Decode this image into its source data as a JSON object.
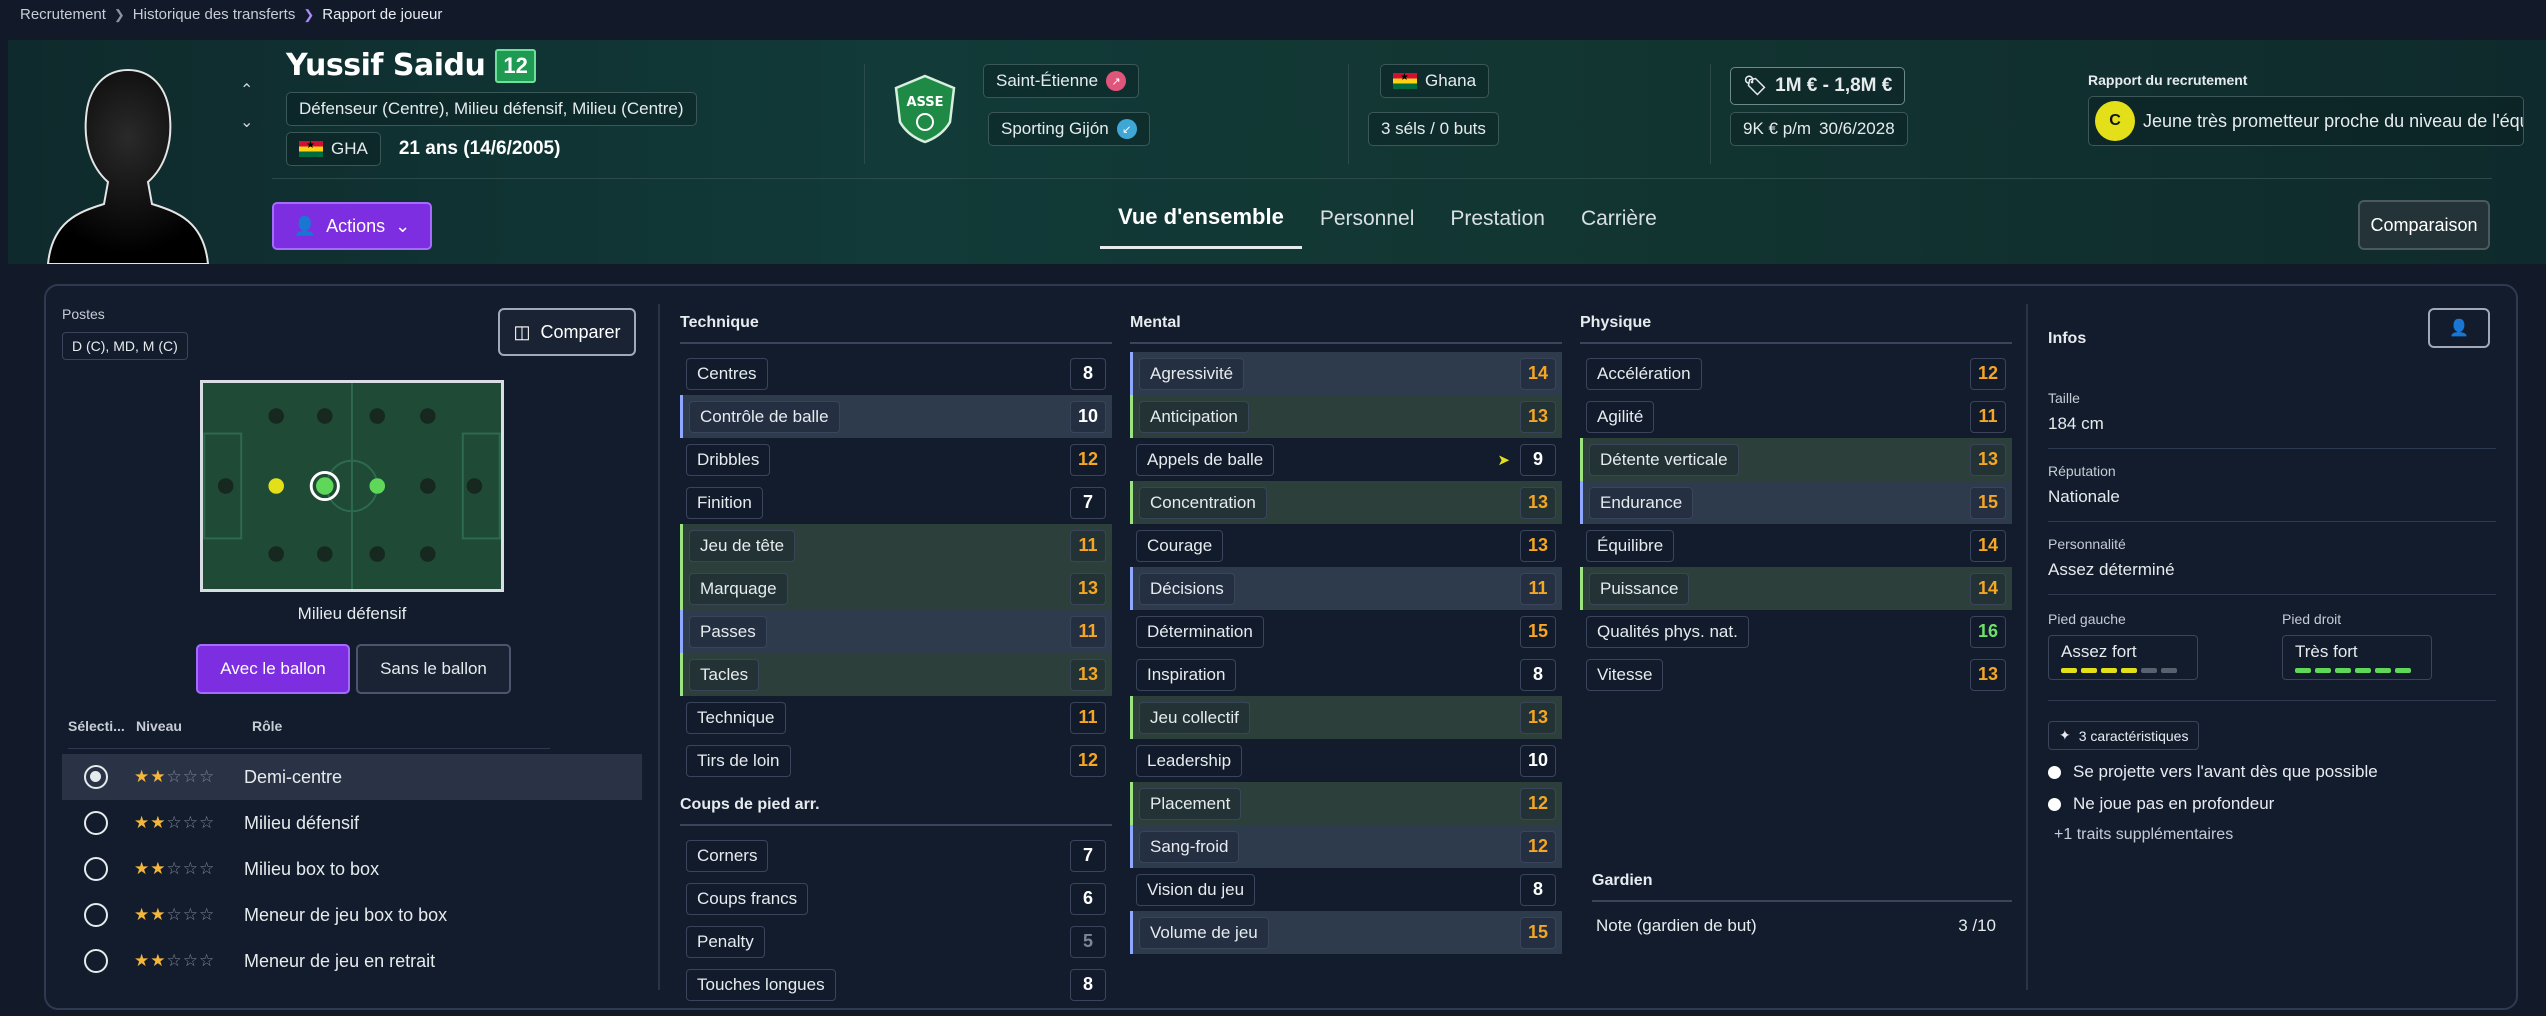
{
  "breadcrumb": [
    "Recrutement",
    "Historique des transferts",
    "Rapport de joueur"
  ],
  "player": {
    "name": "Yussif Saidu",
    "number": "12",
    "positions": "Défenseur (Centre), Milieu défensif, Milieu (Centre)",
    "nationality_code": "GHA",
    "age": "21 ans (14/6/2005)"
  },
  "header": {
    "actions_label": "Actions",
    "club_current": "Saint-Étienne",
    "club_loan": "Sporting Gijón",
    "country": "Ghana",
    "caps": "3 séls / 0 buts",
    "value": "1M € - 1,8M €",
    "wage": "9K € p/m",
    "contract_end": "30/6/2028",
    "report_title": "Rapport du recrutement",
    "report_grade": "C",
    "report_text": "Jeune très prometteur proche du niveau de l'équip...",
    "tabs": [
      "Vue d'ensemble",
      "Personnel",
      "Prestation",
      "Carrière"
    ],
    "compare_label": "Comparaison"
  },
  "left": {
    "postes_label": "Postes",
    "postes_value": "D (C), MD, M (C)",
    "compare_btn": "Comparer",
    "pitch_position": "Milieu défensif",
    "with_ball": "Avec le ballon",
    "without_ball": "Sans le ballon",
    "role_headers": [
      "Sélecti...",
      "Niveau",
      "Rôle"
    ],
    "roles": [
      {
        "name": "Demi-centre",
        "stars": 2,
        "selected": true
      },
      {
        "name": "Milieu défensif",
        "stars": 2,
        "selected": false
      },
      {
        "name": "Milieu box to box",
        "stars": 2,
        "selected": false
      },
      {
        "name": "Meneur de jeu box to box",
        "stars": 2,
        "selected": false
      },
      {
        "name": "Meneur de jeu en retrait",
        "stars": 2,
        "selected": false
      }
    ]
  },
  "attributes": {
    "technique": {
      "title": "Technique",
      "items": [
        {
          "name": "Centres",
          "value": "8",
          "color": "white",
          "hl": "",
          "ind": ""
        },
        {
          "name": "Contrôle de balle",
          "value": "10",
          "color": "white",
          "hl": "hl",
          "ind": "ib"
        },
        {
          "name": "Dribbles",
          "value": "12",
          "color": "orange",
          "hl": "",
          "ind": ""
        },
        {
          "name": "Finition",
          "value": "7",
          "color": "white",
          "hl": "",
          "ind": ""
        },
        {
          "name": "Jeu de tête",
          "value": "11",
          "color": "orange",
          "hl": "hg",
          "ind": "ig"
        },
        {
          "name": "Marquage",
          "value": "13",
          "color": "orange",
          "hl": "hg",
          "ind": "ig"
        },
        {
          "name": "Passes",
          "value": "11",
          "color": "orange",
          "hl": "hl",
          "ind": "ib"
        },
        {
          "name": "Tacles",
          "value": "13",
          "color": "orange",
          "hl": "hg",
          "ind": "ig"
        },
        {
          "name": "Technique",
          "value": "11",
          "color": "orange",
          "hl": "",
          "ind": ""
        },
        {
          "name": "Tirs de loin",
          "value": "12",
          "color": "orange",
          "hl": "",
          "ind": ""
        }
      ]
    },
    "set_pieces": {
      "title": "Coups de pied arr.",
      "items": [
        {
          "name": "Corners",
          "value": "7",
          "color": "white",
          "hl": "",
          "ind": ""
        },
        {
          "name": "Coups francs",
          "value": "6",
          "color": "white",
          "hl": "",
          "ind": ""
        },
        {
          "name": "Penalty",
          "value": "5",
          "color": "gray",
          "hl": "",
          "ind": ""
        },
        {
          "name": "Touches longues",
          "value": "8",
          "color": "white",
          "hl": "",
          "ind": ""
        }
      ]
    },
    "mental": {
      "title": "Mental",
      "items": [
        {
          "name": "Agressivité",
          "value": "14",
          "color": "orange",
          "hl": "hl",
          "ind": "ib"
        },
        {
          "name": "Anticipation",
          "value": "13",
          "color": "orange",
          "hl": "hg",
          "ind": "ig"
        },
        {
          "name": "Appels de balle",
          "value": "9",
          "color": "white",
          "hl": "",
          "ind": "",
          "flag": true
        },
        {
          "name": "Concentration",
          "value": "13",
          "color": "orange",
          "hl": "hg",
          "ind": "ig"
        },
        {
          "name": "Courage",
          "value": "13",
          "color": "orange",
          "hl": "",
          "ind": ""
        },
        {
          "name": "Décisions",
          "value": "11",
          "color": "orange",
          "hl": "hl",
          "ind": "ib"
        },
        {
          "name": "Détermination",
          "value": "15",
          "color": "orange",
          "hl": "",
          "ind": ""
        },
        {
          "name": "Inspiration",
          "value": "8",
          "color": "white",
          "hl": "",
          "ind": ""
        },
        {
          "name": "Jeu collectif",
          "value": "13",
          "color": "orange",
          "hl": "hg",
          "ind": "ig"
        },
        {
          "name": "Leadership",
          "value": "10",
          "color": "white",
          "hl": "",
          "ind": ""
        },
        {
          "name": "Placement",
          "value": "12",
          "color": "orange",
          "hl": "hg",
          "ind": "ig"
        },
        {
          "name": "Sang-froid",
          "value": "12",
          "color": "orange",
          "hl": "hl",
          "ind": "ib"
        },
        {
          "name": "Vision du jeu",
          "value": "8",
          "color": "white",
          "hl": "",
          "ind": ""
        },
        {
          "name": "Volume de jeu",
          "value": "15",
          "color": "orange",
          "hl": "hl",
          "ind": "ib"
        }
      ]
    },
    "physique": {
      "title": "Physique",
      "items": [
        {
          "name": "Accélération",
          "value": "12",
          "color": "orange",
          "hl": "",
          "ind": ""
        },
        {
          "name": "Agilité",
          "value": "11",
          "color": "orange",
          "hl": "",
          "ind": ""
        },
        {
          "name": "Détente verticale",
          "value": "13",
          "color": "orange",
          "hl": "hg",
          "ind": "ig"
        },
        {
          "name": "Endurance",
          "value": "15",
          "color": "orange",
          "hl": "hl",
          "ind": "ib"
        },
        {
          "name": "Équilibre",
          "value": "14",
          "color": "orange",
          "hl": "",
          "ind": ""
        },
        {
          "name": "Puissance",
          "value": "14",
          "color": "orange",
          "hl": "hg",
          "ind": "ig"
        },
        {
          "name": "Qualités phys. nat.",
          "value": "16",
          "color": "green",
          "hl": "",
          "ind": ""
        },
        {
          "name": "Vitesse",
          "value": "13",
          "color": "orange",
          "hl": "",
          "ind": ""
        }
      ]
    },
    "goalkeeper": {
      "title": "Gardien",
      "label": "Note (gardien de but)",
      "value": "3 /10"
    }
  },
  "infos": {
    "title": "Infos",
    "height_label": "Taille",
    "height": "184 cm",
    "reputation_label": "Réputation",
    "reputation": "Nationale",
    "personality_label": "Personnalité",
    "personality": "Assez déterminé",
    "left_foot_label": "Pied gauche",
    "left_foot": "Assez fort",
    "left_foot_level": 4,
    "right_foot_label": "Pied droit",
    "right_foot": "Très fort",
    "right_foot_level": 6,
    "traits_pill": "3 caractéristiques",
    "traits": [
      "Se projette vers l'avant dès que possible",
      "Ne joue pas en profondeur"
    ],
    "more_traits": "+1 traits supplémentaires"
  },
  "colors": {
    "accent": "#7c2ee0",
    "orange": "#f5a623",
    "green": "#6fe06b",
    "foot_left": "#e3e019",
    "foot_right": "#5fd85a"
  }
}
